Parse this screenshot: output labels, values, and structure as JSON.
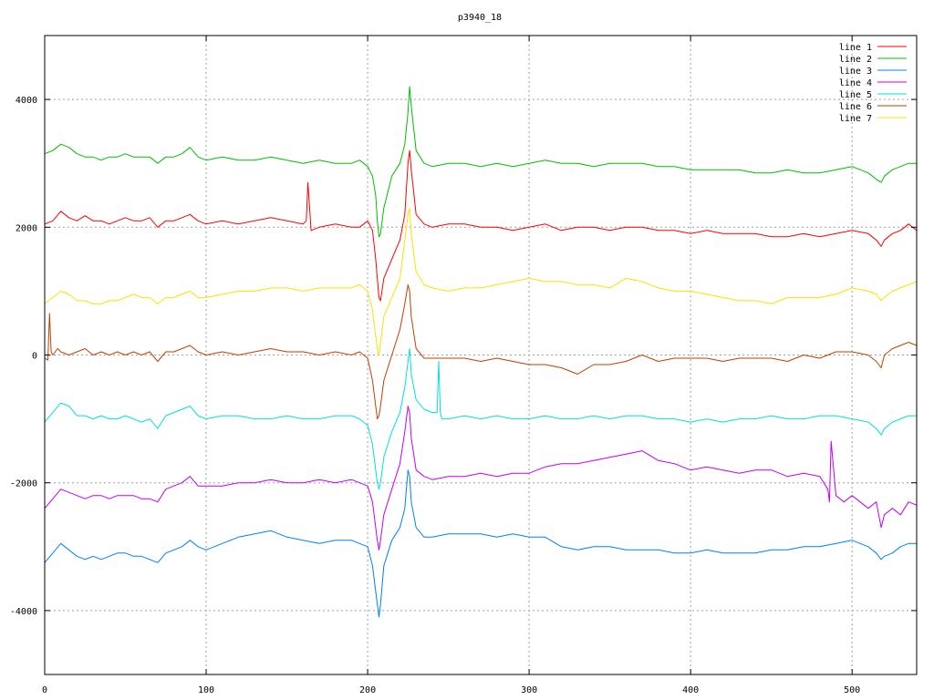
{
  "chart_data": {
    "type": "line",
    "title": "p3940_18",
    "xlabel": "",
    "ylabel": "",
    "xlim": [
      0,
      540
    ],
    "ylim": [
      -5000,
      5000
    ],
    "xticks": [
      0,
      100,
      200,
      300,
      400,
      500
    ],
    "yticks": [
      -4000,
      -2000,
      0,
      2000,
      4000
    ],
    "ytick_labels": [
      "-4000",
      "-2000",
      "0",
      "2000",
      "4000"
    ],
    "grid": true,
    "legend_position": "top-right",
    "series": [
      {
        "name": "line 1",
        "color": "#ff0000",
        "x": [
          0,
          5,
          10,
          15,
          20,
          25,
          30,
          35,
          40,
          45,
          50,
          55,
          60,
          65,
          70,
          75,
          80,
          85,
          90,
          95,
          100,
          110,
          120,
          130,
          140,
          150,
          160,
          162,
          163,
          165,
          170,
          180,
          190,
          195,
          200,
          203,
          205,
          206,
          207,
          208,
          210,
          215,
          220,
          223,
          225,
          226,
          227,
          230,
          235,
          240,
          250,
          260,
          270,
          280,
          290,
          300,
          310,
          320,
          330,
          340,
          350,
          360,
          370,
          380,
          390,
          400,
          410,
          420,
          430,
          440,
          450,
          460,
          470,
          480,
          490,
          500,
          510,
          515,
          518,
          520,
          525,
          530,
          535,
          540
        ],
        "y": [
          2050,
          2100,
          2250,
          2150,
          2100,
          2180,
          2100,
          2100,
          2050,
          2100,
          2150,
          2100,
          2100,
          2150,
          2000,
          2100,
          2100,
          2150,
          2200,
          2100,
          2050,
          2100,
          2050,
          2100,
          2150,
          2100,
          2050,
          2100,
          2700,
          1950,
          2000,
          2050,
          2000,
          2000,
          2100,
          1950,
          1500,
          1200,
          900,
          850,
          1200,
          1500,
          1800,
          2200,
          3000,
          3200,
          2900,
          2200,
          2050,
          2000,
          2050,
          2050,
          2000,
          2000,
          1950,
          2000,
          2050,
          1950,
          2000,
          2000,
          1950,
          2000,
          2000,
          1950,
          1950,
          1900,
          1950,
          1900,
          1900,
          1900,
          1850,
          1850,
          1900,
          1850,
          1900,
          1950,
          1900,
          1800,
          1700,
          1800,
          1900,
          1950,
          2050,
          1950
        ]
      },
      {
        "name": "line 2",
        "color": "#00c000",
        "x": [
          0,
          5,
          10,
          15,
          20,
          25,
          30,
          35,
          40,
          45,
          50,
          55,
          60,
          65,
          70,
          75,
          80,
          85,
          90,
          95,
          100,
          110,
          120,
          130,
          140,
          150,
          160,
          170,
          180,
          190,
          195,
          200,
          203,
          205,
          206,
          207,
          208,
          210,
          215,
          220,
          223,
          225,
          226,
          227,
          230,
          235,
          240,
          250,
          260,
          270,
          280,
          290,
          300,
          310,
          320,
          330,
          340,
          350,
          360,
          370,
          380,
          390,
          400,
          410,
          420,
          430,
          440,
          450,
          460,
          470,
          480,
          490,
          500,
          510,
          515,
          518,
          520,
          525,
          530,
          535,
          540
        ],
        "y": [
          3150,
          3200,
          3300,
          3250,
          3150,
          3100,
          3100,
          3050,
          3100,
          3100,
          3150,
          3100,
          3100,
          3100,
          3000,
          3100,
          3100,
          3150,
          3250,
          3100,
          3050,
          3100,
          3050,
          3050,
          3100,
          3050,
          3000,
          3050,
          3000,
          3000,
          3050,
          2950,
          2800,
          2500,
          2100,
          1850,
          1900,
          2300,
          2800,
          3000,
          3300,
          3800,
          4200,
          3900,
          3200,
          3000,
          2950,
          3000,
          3000,
          2950,
          3000,
          2950,
          3000,
          3050,
          3000,
          3000,
          2950,
          3000,
          3000,
          3000,
          2950,
          2950,
          2900,
          2900,
          2900,
          2900,
          2850,
          2850,
          2900,
          2850,
          2850,
          2900,
          2950,
          2850,
          2750,
          2700,
          2800,
          2900,
          2950,
          3000,
          3000
        ]
      },
      {
        "name": "line 3",
        "color": "#0080ff",
        "x": [
          0,
          5,
          10,
          15,
          20,
          25,
          30,
          35,
          40,
          45,
          50,
          55,
          60,
          65,
          70,
          75,
          80,
          85,
          90,
          95,
          100,
          110,
          120,
          130,
          140,
          150,
          160,
          170,
          180,
          190,
          195,
          200,
          203,
          205,
          206,
          207,
          208,
          210,
          215,
          220,
          223,
          225,
          226,
          227,
          230,
          235,
          240,
          250,
          260,
          270,
          280,
          290,
          300,
          310,
          320,
          330,
          340,
          350,
          360,
          370,
          380,
          390,
          400,
          410,
          420,
          430,
          440,
          450,
          460,
          470,
          480,
          490,
          500,
          510,
          515,
          518,
          520,
          525,
          530,
          535,
          540
        ],
        "y": [
          -3250,
          -3100,
          -2950,
          -3050,
          -3150,
          -3200,
          -3150,
          -3200,
          -3150,
          -3100,
          -3100,
          -3150,
          -3150,
          -3200,
          -3250,
          -3100,
          -3050,
          -3000,
          -2900,
          -3000,
          -3050,
          -2950,
          -2850,
          -2800,
          -2750,
          -2850,
          -2900,
          -2950,
          -2900,
          -2900,
          -2950,
          -3000,
          -3300,
          -3700,
          -3900,
          -4100,
          -3900,
          -3300,
          -2900,
          -2700,
          -2400,
          -1800,
          -1900,
          -2300,
          -2700,
          -2850,
          -2850,
          -2800,
          -2800,
          -2800,
          -2850,
          -2800,
          -2850,
          -2850,
          -3000,
          -3050,
          -3000,
          -3000,
          -3050,
          -3050,
          -3050,
          -3100,
          -3100,
          -3050,
          -3100,
          -3100,
          -3100,
          -3050,
          -3050,
          -3000,
          -3000,
          -2950,
          -2900,
          -3000,
          -3100,
          -3200,
          -3150,
          -3100,
          -3000,
          -2950,
          -2950
        ]
      },
      {
        "name": "line 4",
        "color": "#c000ff",
        "x": [
          0,
          5,
          10,
          15,
          20,
          25,
          30,
          35,
          40,
          45,
          50,
          55,
          60,
          65,
          70,
          75,
          80,
          85,
          90,
          95,
          100,
          110,
          120,
          130,
          140,
          150,
          160,
          170,
          180,
          190,
          195,
          200,
          203,
          205,
          206,
          207,
          208,
          210,
          215,
          220,
          223,
          225,
          226,
          227,
          230,
          235,
          240,
          250,
          260,
          270,
          280,
          290,
          300,
          310,
          320,
          330,
          340,
          350,
          360,
          370,
          380,
          390,
          400,
          410,
          420,
          430,
          440,
          450,
          460,
          470,
          480,
          485,
          486,
          487,
          490,
          495,
          500,
          505,
          510,
          515,
          518,
          520,
          525,
          530,
          535,
          540
        ],
        "y": [
          -2400,
          -2250,
          -2100,
          -2150,
          -2200,
          -2250,
          -2200,
          -2200,
          -2250,
          -2200,
          -2200,
          -2200,
          -2250,
          -2250,
          -2300,
          -2100,
          -2050,
          -2000,
          -1900,
          -2050,
          -2050,
          -2050,
          -2000,
          -2000,
          -1950,
          -2000,
          -2000,
          -1950,
          -2000,
          -1950,
          -2000,
          -2050,
          -2300,
          -2700,
          -2900,
          -3050,
          -2900,
          -2500,
          -2100,
          -1700,
          -1200,
          -800,
          -900,
          -1300,
          -1800,
          -1900,
          -1950,
          -1900,
          -1900,
          -1850,
          -1900,
          -1850,
          -1850,
          -1750,
          -1700,
          -1700,
          -1650,
          -1600,
          -1550,
          -1500,
          -1650,
          -1700,
          -1800,
          -1750,
          -1800,
          -1850,
          -1800,
          -1800,
          -1900,
          -1850,
          -1900,
          -2100,
          -2300,
          -1350,
          -2200,
          -2300,
          -2200,
          -2300,
          -2400,
          -2300,
          -2700,
          -2500,
          -2400,
          -2500,
          -2300,
          -2350
        ]
      },
      {
        "name": "line 5",
        "color": "#00e0e0",
        "x": [
          0,
          5,
          10,
          15,
          20,
          25,
          30,
          35,
          40,
          45,
          50,
          55,
          60,
          65,
          70,
          75,
          80,
          85,
          90,
          95,
          100,
          110,
          120,
          130,
          140,
          150,
          160,
          170,
          180,
          190,
          195,
          200,
          203,
          205,
          206,
          207,
          208,
          210,
          215,
          220,
          223,
          225,
          226,
          227,
          230,
          235,
          240,
          243,
          244,
          245,
          246,
          250,
          260,
          270,
          280,
          290,
          300,
          310,
          320,
          330,
          340,
          350,
          360,
          370,
          380,
          390,
          400,
          410,
          420,
          430,
          440,
          450,
          460,
          470,
          480,
          490,
          500,
          510,
          515,
          518,
          520,
          525,
          530,
          535,
          540
        ],
        "y": [
          -1050,
          -900,
          -750,
          -800,
          -950,
          -950,
          -1000,
          -950,
          -1000,
          -1000,
          -950,
          -1000,
          -1050,
          -1000,
          -1150,
          -950,
          -900,
          -850,
          -800,
          -950,
          -1000,
          -950,
          -950,
          -1000,
          -1000,
          -950,
          -1000,
          -1000,
          -950,
          -950,
          -1000,
          -1100,
          -1400,
          -1800,
          -2000,
          -2100,
          -2000,
          -1600,
          -1200,
          -900,
          -500,
          -100,
          100,
          -300,
          -700,
          -850,
          -900,
          -900,
          -100,
          -900,
          -1000,
          -1000,
          -950,
          -1000,
          -950,
          -1000,
          -1000,
          -950,
          -1000,
          -1000,
          -950,
          -1000,
          -950,
          -950,
          -1000,
          -1000,
          -1050,
          -1000,
          -1050,
          -1000,
          -1000,
          -950,
          -1000,
          -1000,
          -950,
          -950,
          -1000,
          -1050,
          -1150,
          -1250,
          -1150,
          -1050,
          -1000,
          -950,
          -950
        ]
      },
      {
        "name": "line 6",
        "color": "#c04000",
        "x": [
          0,
          2,
          3,
          4,
          5,
          8,
          10,
          15,
          20,
          25,
          30,
          35,
          40,
          45,
          50,
          55,
          60,
          65,
          70,
          75,
          80,
          85,
          90,
          95,
          100,
          110,
          120,
          130,
          140,
          150,
          160,
          170,
          180,
          190,
          195,
          200,
          203,
          205,
          206,
          207,
          208,
          210,
          215,
          220,
          223,
          225,
          226,
          227,
          230,
          235,
          240,
          250,
          260,
          270,
          280,
          290,
          300,
          310,
          320,
          330,
          340,
          350,
          360,
          370,
          380,
          390,
          400,
          410,
          420,
          430,
          440,
          450,
          460,
          470,
          480,
          490,
          500,
          510,
          515,
          518,
          520,
          525,
          530,
          535,
          540
        ],
        "y": [
          -50,
          -80,
          650,
          50,
          0,
          100,
          50,
          0,
          50,
          100,
          0,
          50,
          0,
          50,
          0,
          50,
          0,
          50,
          -100,
          50,
          50,
          100,
          150,
          50,
          0,
          50,
          0,
          50,
          100,
          50,
          50,
          0,
          50,
          0,
          50,
          -50,
          -400,
          -800,
          -1000,
          -950,
          -800,
          -400,
          0,
          400,
          800,
          1100,
          1000,
          600,
          100,
          -50,
          -50,
          -50,
          -50,
          -100,
          -50,
          -100,
          -150,
          -150,
          -200,
          -300,
          -150,
          -150,
          -100,
          0,
          -100,
          -50,
          -50,
          -50,
          -100,
          -50,
          -50,
          -50,
          -100,
          0,
          -50,
          50,
          50,
          0,
          -100,
          -200,
          0,
          100,
          150,
          200,
          150
        ]
      },
      {
        "name": "line 7",
        "color": "#ffe000",
        "x": [
          0,
          5,
          10,
          15,
          20,
          25,
          30,
          35,
          40,
          45,
          50,
          55,
          60,
          65,
          70,
          75,
          80,
          85,
          90,
          95,
          100,
          110,
          120,
          130,
          140,
          150,
          160,
          170,
          180,
          190,
          195,
          200,
          203,
          205,
          206,
          207,
          208,
          210,
          215,
          220,
          223,
          225,
          226,
          227,
          230,
          235,
          240,
          250,
          260,
          270,
          280,
          290,
          300,
          310,
          320,
          330,
          340,
          350,
          360,
          370,
          380,
          390,
          400,
          410,
          420,
          430,
          440,
          450,
          460,
          470,
          480,
          490,
          500,
          510,
          515,
          518,
          520,
          525,
          530,
          535,
          540
        ],
        "y": [
          800,
          900,
          1000,
          950,
          850,
          850,
          800,
          800,
          850,
          850,
          900,
          950,
          900,
          900,
          800,
          900,
          900,
          950,
          1000,
          900,
          900,
          950,
          1000,
          1000,
          1050,
          1050,
          1000,
          1050,
          1050,
          1050,
          1100,
          1000,
          700,
          300,
          100,
          0,
          200,
          600,
          900,
          1200,
          1800,
          2200,
          2300,
          1900,
          1300,
          1100,
          1050,
          1000,
          1050,
          1050,
          1100,
          1150,
          1200,
          1150,
          1150,
          1100,
          1100,
          1050,
          1200,
          1150,
          1050,
          1000,
          1000,
          950,
          900,
          850,
          850,
          800,
          900,
          900,
          900,
          950,
          1050,
          1000,
          950,
          850,
          900,
          1000,
          1050,
          1100,
          1150
        ]
      }
    ]
  }
}
